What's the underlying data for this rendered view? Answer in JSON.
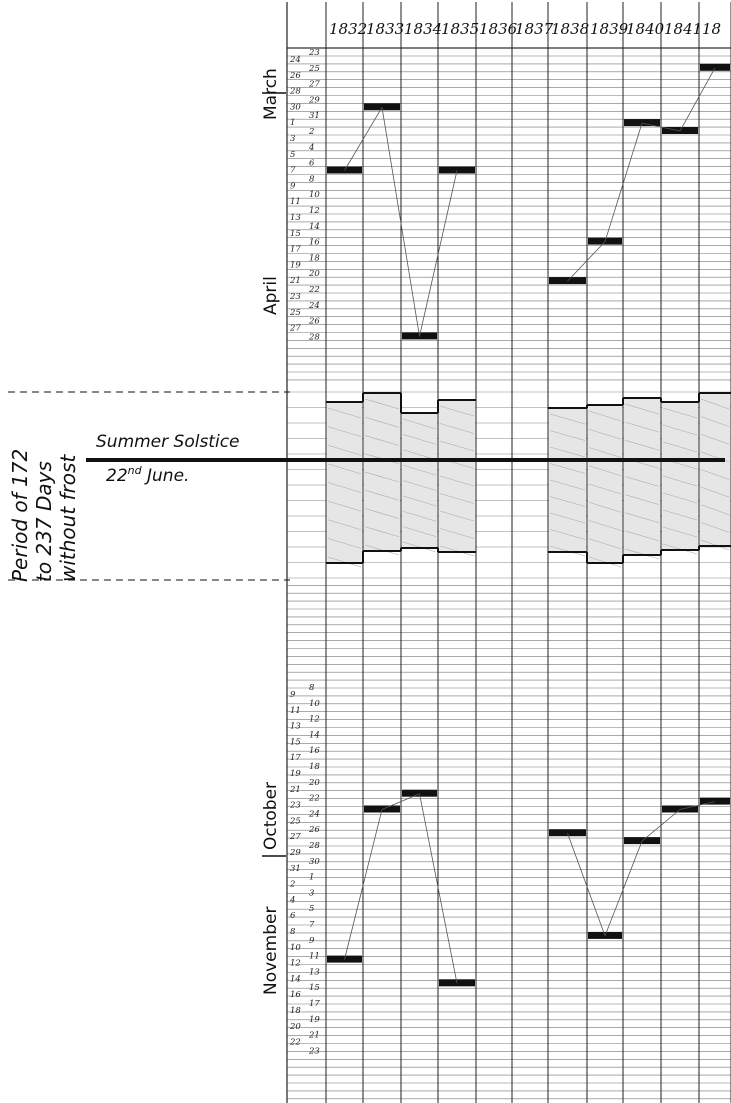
{
  "chart_data": {
    "type": "line",
    "title": "",
    "x": [
      "1832",
      "1833",
      "1834",
      "1835",
      "1836",
      "1837",
      "1838",
      "1839",
      "1840",
      "1841",
      "18"
    ],
    "series": [
      {
        "name": "",
        "values": [
          "April 7",
          "March 30",
          "April 28",
          "April 7",
          null,
          null,
          "April 21",
          "April 16",
          "April 1",
          "April 2",
          "March 25"
        ]
      },
      {
        "name": "",
        "values": [
          "November 11",
          "October 23",
          "October 21",
          "November 14",
          null,
          null,
          "October 26",
          "November 8",
          "October 27",
          "October 23",
          "October 22"
        ]
      }
    ],
    "months": [
      "March",
      "April",
      "October",
      "November"
    ],
    "spring_days_col1": [
      "24",
      "26",
      "28",
      "30",
      "1",
      "3",
      "5",
      "7",
      "9",
      "11",
      "13",
      "15",
      "17",
      "19",
      "21",
      "23",
      "25",
      "27"
    ],
    "spring_days_col2": [
      "23",
      "25",
      "27",
      "29",
      "31",
      "2",
      "4",
      "6",
      "8",
      "10",
      "12",
      "14",
      "16",
      "18",
      "20",
      "22",
      "24",
      "26",
      "28"
    ],
    "autumn_days_col1": [
      "9",
      "11",
      "13",
      "15",
      "17",
      "19",
      "21",
      "23",
      "25",
      "27",
      "29",
      "31",
      "2",
      "4",
      "6",
      "8",
      "10",
      "12",
      "14",
      "16",
      "18",
      "20",
      "22"
    ],
    "autumn_days_col2": [
      "8",
      "10",
      "12",
      "14",
      "16",
      "18",
      "20",
      "22",
      "24",
      "26",
      "28",
      "30",
      "1",
      "3",
      "5",
      "7",
      "9",
      "11",
      "13",
      "15",
      "17",
      "19",
      "21",
      "23"
    ],
    "frost_free_label": "Period of 172 to 237 Days without frost",
    "period_lines": [
      "Period of 172",
      "to 237 Days",
      "without frost"
    ],
    "solstice_name": "Summer Solstice",
    "solstice_date": "22nd June.",
    "solstice_day": "22",
    "solstice_suffix": "nd",
    "solstice_month": " June."
  }
}
